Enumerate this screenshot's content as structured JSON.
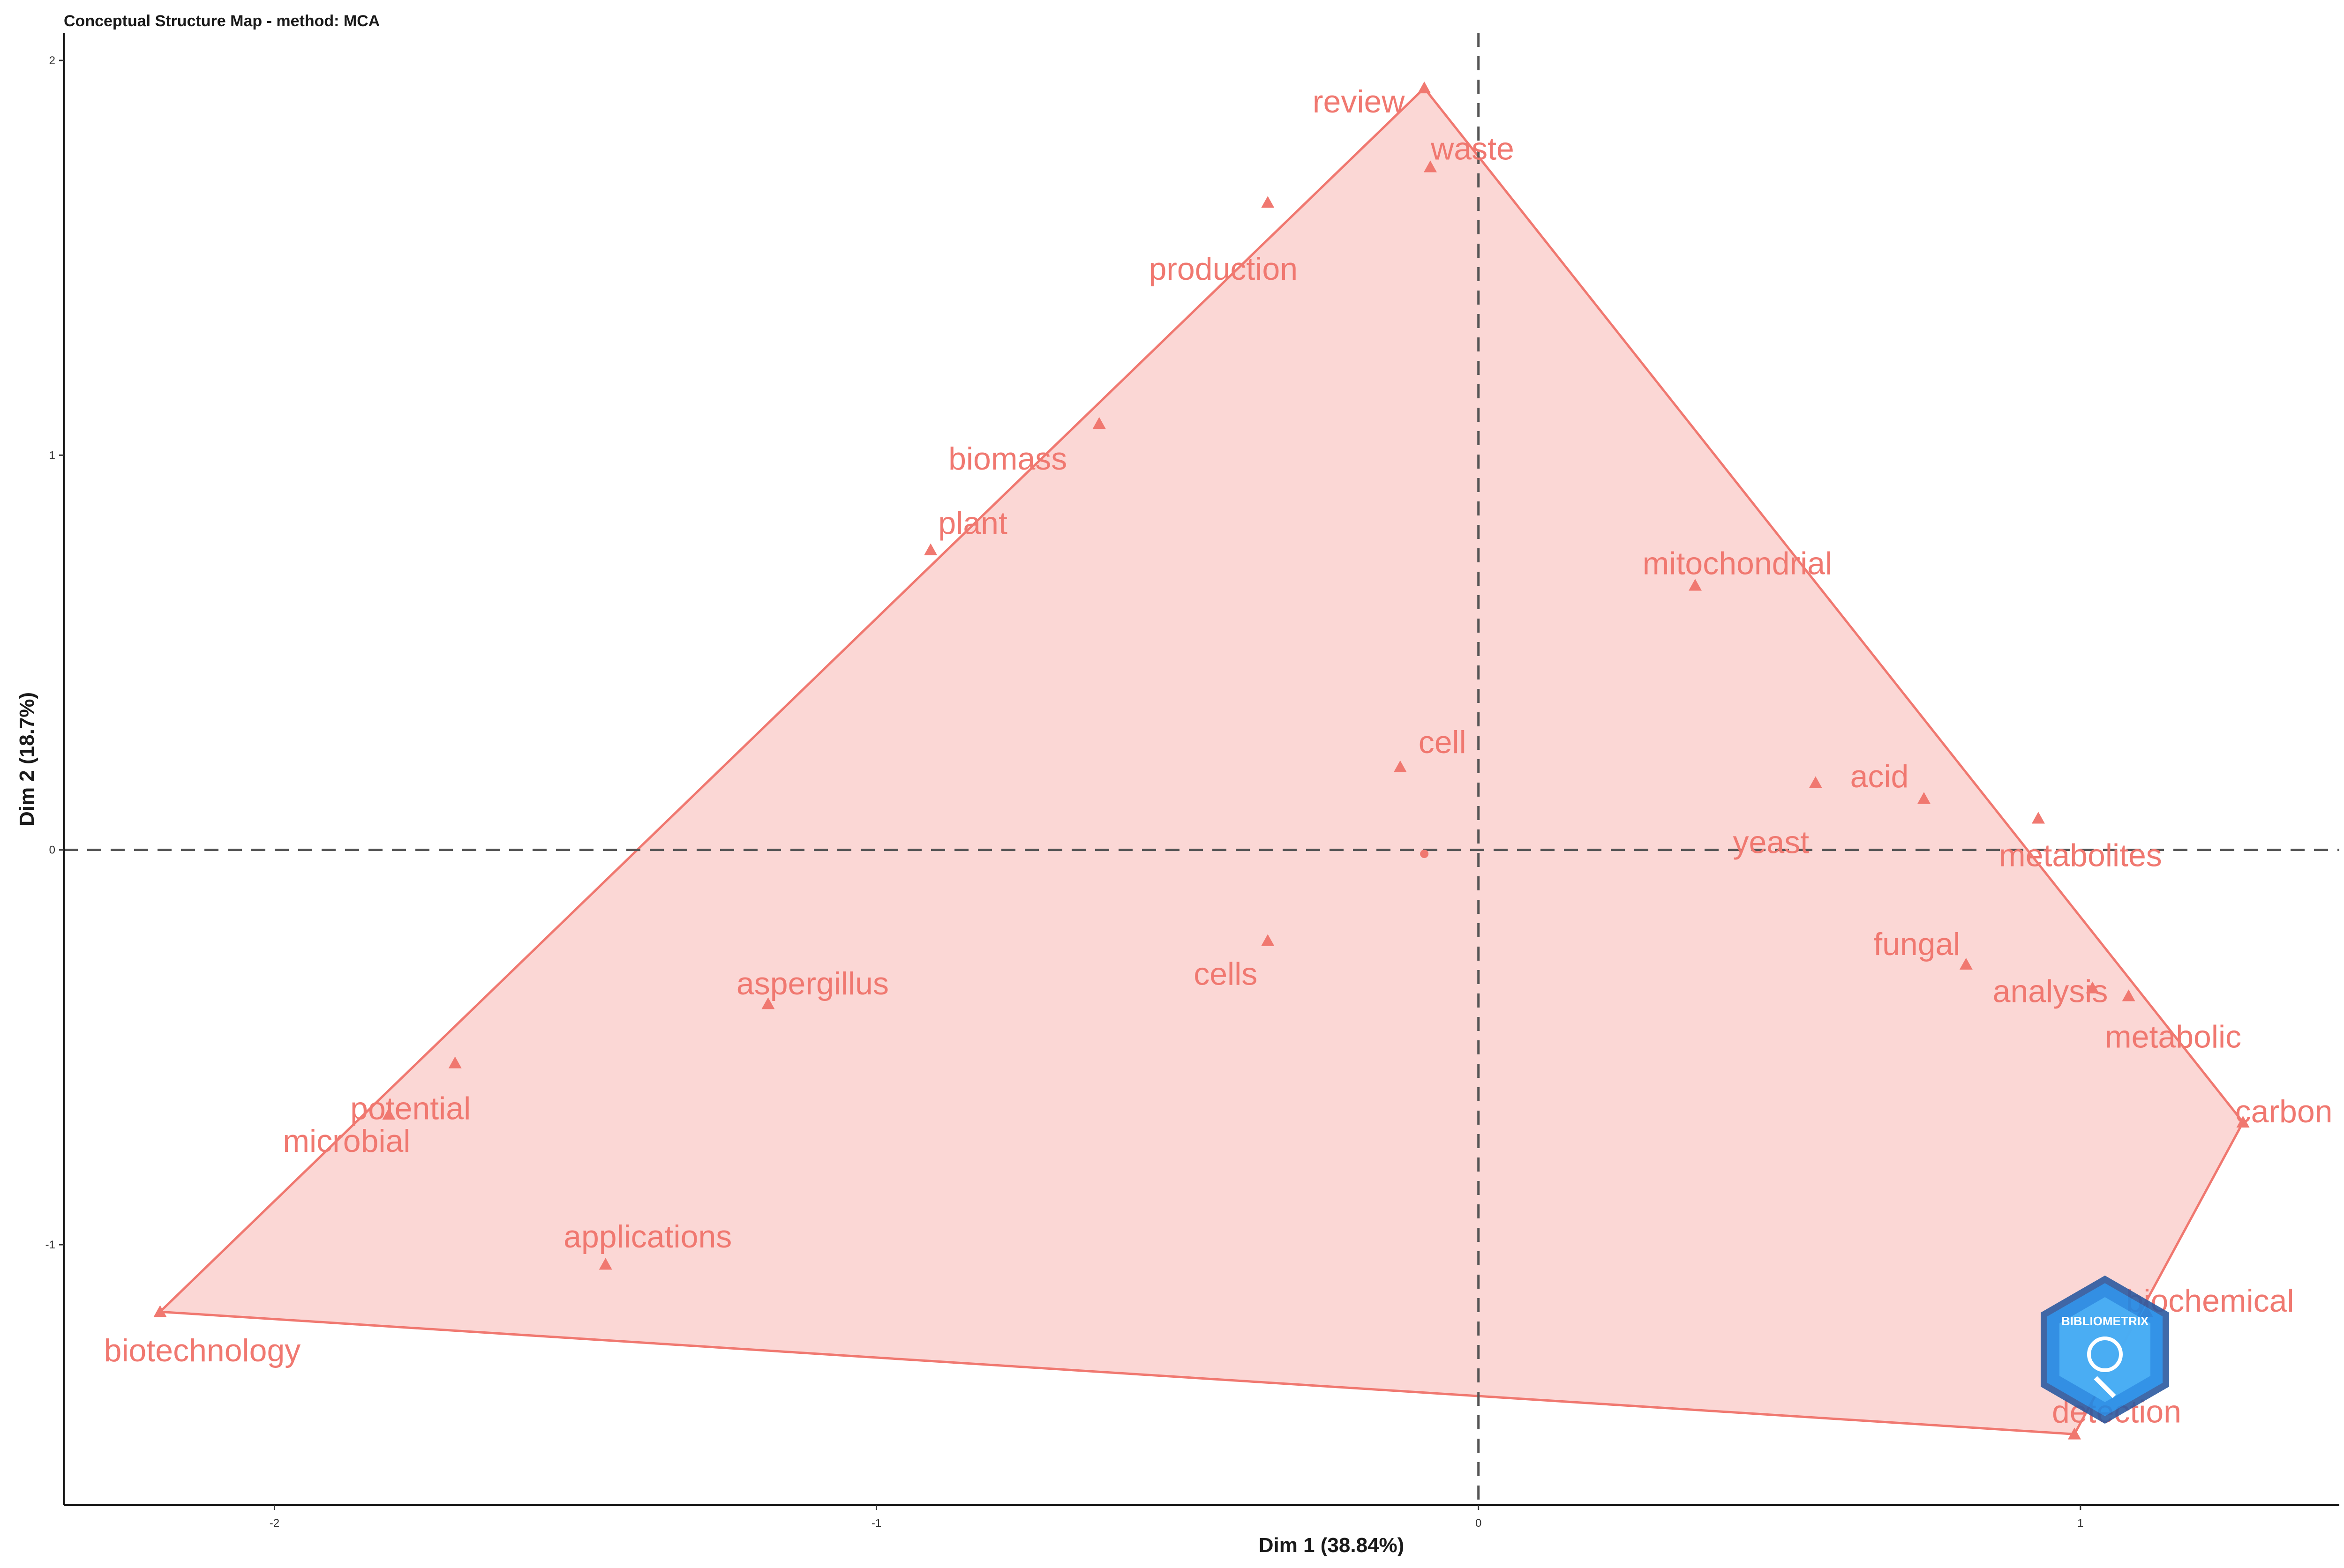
{
  "chart_data": {
    "type": "scatter",
    "title": "Conceptual Structure Map - method: MCA",
    "xlabel": "Dim 1 (38.84%)",
    "ylabel": "Dim 2 (18.7%)",
    "xlim": [
      -2.35,
      1.43
    ],
    "ylim": [
      -1.66,
      2.07
    ],
    "x_ticks": [
      -2,
      -1,
      0,
      1
    ],
    "y_ticks": [
      -1,
      0,
      1,
      2
    ],
    "reference_lines": {
      "x": 0,
      "y": 0
    },
    "grid": false,
    "hull_color": "#f07870",
    "hull_fill": "#fbd3d0",
    "points": [
      {
        "label": "review",
        "x": -0.09,
        "y": 1.93
      },
      {
        "label": "waste",
        "x": -0.08,
        "y": 1.73
      },
      {
        "label": "production",
        "x": -0.35,
        "y": 1.64
      },
      {
        "label": "biomass",
        "x": -0.63,
        "y": 1.08
      },
      {
        "label": "plant",
        "x": -0.91,
        "y": 0.76
      },
      {
        "label": "mitochondrial",
        "x": 0.36,
        "y": 0.67
      },
      {
        "label": "cell",
        "x": -0.13,
        "y": 0.21
      },
      {
        "label": "yeast",
        "x": 0.56,
        "y": 0.17
      },
      {
        "label": "acid",
        "x": 0.74,
        "y": 0.13
      },
      {
        "label": "metabolites",
        "x": 0.93,
        "y": 0.08
      },
      {
        "label": "fungal",
        "x": 0.81,
        "y": -0.29
      },
      {
        "label": "analysis",
        "x": 1.02,
        "y": -0.35
      },
      {
        "label": "metabolic",
        "x": 1.08,
        "y": -0.37
      },
      {
        "label": "carbon",
        "x": 1.27,
        "y": -0.69
      },
      {
        "label": "biochemical",
        "x": 1.11,
        "y": -1.17
      },
      {
        "label": "detection",
        "x": 0.99,
        "y": -1.48
      },
      {
        "label": "cells",
        "x": -0.35,
        "y": -0.23
      },
      {
        "label": "aspergillus",
        "x": -1.18,
        "y": -0.39
      },
      {
        "label": "potential",
        "x": -1.7,
        "y": -0.54
      },
      {
        "label": "microbial",
        "x": -1.81,
        "y": -0.67
      },
      {
        "label": "applications",
        "x": -1.45,
        "y": -1.05
      },
      {
        "label": "biotechnology",
        "x": -2.19,
        "y": -1.17
      }
    ],
    "centroid": {
      "x": -0.09,
      "y": -0.01
    },
    "hull": [
      "review",
      "carbon",
      "detection",
      "biotechnology"
    ]
  },
  "logo": {
    "name": "bibliometrix-logo",
    "text": "BIBLIOMETRIX"
  }
}
